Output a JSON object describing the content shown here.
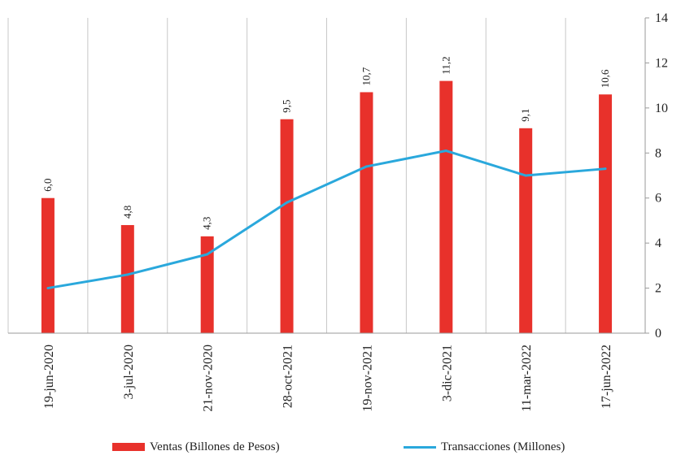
{
  "chart_data": {
    "type": "bar+line",
    "categories": [
      "19-jun-2020",
      "3-jul-2020",
      "21-nov-2020",
      "28-oct-2021",
      "19-nov-2021",
      "3-dic-2021",
      "11-mar-2022",
      "17-jun-2022"
    ],
    "series": [
      {
        "name": "Ventas (Billones de Pesos)",
        "type": "bar",
        "color": "#e8312b",
        "values": [
          6.0,
          4.8,
          4.3,
          9.5,
          10.7,
          11.2,
          9.1,
          10.6
        ],
        "labels": [
          "6,0",
          "4,8",
          "4,3",
          "9,5",
          "10,7",
          "11,2",
          "9,1",
          "10,6"
        ]
      },
      {
        "name": "Transacciones (Millones)",
        "type": "line",
        "color": "#2aa8dc",
        "values": [
          2.0,
          2.6,
          3.5,
          5.8,
          7.4,
          8.1,
          7.0,
          7.3
        ]
      }
    ],
    "y_axis": {
      "side": "right",
      "min": 0,
      "max": 14,
      "ticks": [
        0,
        2,
        4,
        6,
        8,
        10,
        12,
        14
      ]
    },
    "grid": "vertical",
    "legend_position": "bottom"
  }
}
